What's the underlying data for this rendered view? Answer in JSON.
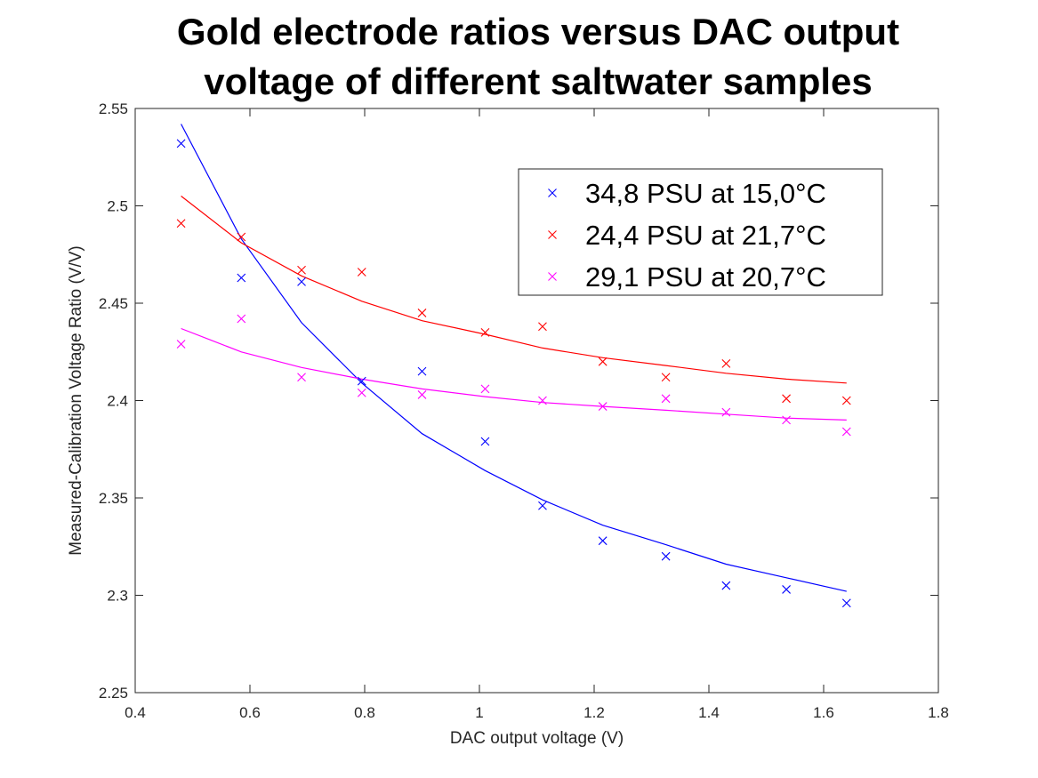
{
  "chart_data": {
    "type": "scatter",
    "title_lines": [
      "Gold electrode ratios versus DAC output",
      "voltage of different saltwater samples"
    ],
    "xlabel": "DAC output voltage (V)",
    "ylabel": "Measured-Calibration Voltage Ratio (V/V)",
    "xlim": [
      0.4,
      1.8
    ],
    "ylim": [
      2.25,
      2.55
    ],
    "x_ticks": [
      0.4,
      0.6,
      0.8,
      1.0,
      1.2,
      1.4,
      1.6,
      1.8
    ],
    "x_tick_labels": [
      "0.4",
      "0.6",
      "0.8",
      "1",
      "1.2",
      "1.4",
      "1.6",
      "1.8"
    ],
    "y_ticks": [
      2.25,
      2.3,
      2.35,
      2.4,
      2.45,
      2.5,
      2.55
    ],
    "y_tick_labels": [
      "2.25",
      "2.3",
      "2.35",
      "2.4",
      "2.45",
      "2.5",
      "2.55"
    ],
    "grid": false,
    "legend_position": "top-right",
    "x": [
      0.48,
      0.585,
      0.69,
      0.795,
      0.9,
      1.01,
      1.11,
      1.215,
      1.325,
      1.43,
      1.535,
      1.64
    ],
    "series": [
      {
        "name": "34,8 PSU at 15,0°C",
        "color": "#0000ff",
        "values": [
          2.532,
          2.463,
          2.461,
          2.41,
          2.415,
          2.379,
          2.346,
          2.328,
          2.32,
          2.305,
          2.303,
          2.296
        ],
        "fit": [
          2.542,
          2.483,
          2.44,
          2.409,
          2.383,
          2.364,
          2.349,
          2.336,
          2.326,
          2.316,
          2.309,
          2.302
        ]
      },
      {
        "name": "24,4 PSU at 21,7°C",
        "color": "#ff0000",
        "values": [
          2.491,
          2.484,
          2.467,
          2.466,
          2.445,
          2.435,
          2.438,
          2.42,
          2.412,
          2.419,
          2.401,
          2.4
        ],
        "fit": [
          2.505,
          2.481,
          2.464,
          2.451,
          2.441,
          2.434,
          2.427,
          2.422,
          2.418,
          2.414,
          2.411,
          2.409
        ]
      },
      {
        "name": "29,1 PSU at 20,7°C",
        "color": "#ff00ff",
        "values": [
          2.429,
          2.442,
          2.412,
          2.404,
          2.403,
          2.406,
          2.4,
          2.397,
          2.401,
          2.394,
          2.39,
          2.384
        ],
        "fit": [
          2.437,
          2.425,
          2.417,
          2.411,
          2.406,
          2.402,
          2.399,
          2.397,
          2.395,
          2.393,
          2.391,
          2.39
        ]
      }
    ]
  }
}
